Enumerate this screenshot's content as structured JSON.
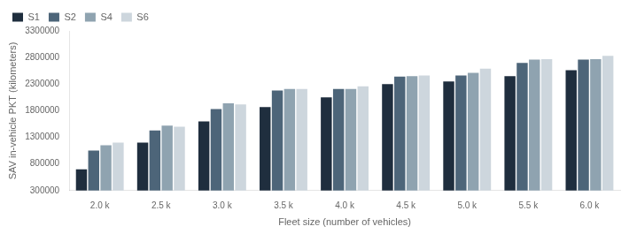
{
  "chart_data": {
    "type": "bar",
    "categories": [
      "2.0 k",
      "2.5 k",
      "3.0 k",
      "3.5 k",
      "4.0 k",
      "4.5 k",
      "5.0 k",
      "5.5 k",
      "6.0 k"
    ],
    "series": [
      {
        "name": "S1",
        "color": "#1f2e3e",
        "values": [
          700000,
          1200000,
          1600000,
          1870000,
          2050000,
          2300000,
          2350000,
          2450000,
          2560000
        ]
      },
      {
        "name": "S2",
        "color": "#4d6579",
        "values": [
          1050000,
          1430000,
          1830000,
          2180000,
          2210000,
          2440000,
          2460000,
          2700000,
          2760000
        ]
      },
      {
        "name": "S4",
        "color": "#8fa3b0",
        "values": [
          1150000,
          1520000,
          1940000,
          2210000,
          2210000,
          2450000,
          2510000,
          2760000,
          2770000
        ]
      },
      {
        "name": "S6",
        "color": "#cdd6dd",
        "values": [
          1200000,
          1500000,
          1920000,
          2210000,
          2260000,
          2460000,
          2590000,
          2770000,
          2830000
        ]
      }
    ],
    "ylabel": "SAV in-vehicle PKT (kilometers)",
    "xlabel": "Fleet size (number of vehicles)",
    "ylim": [
      300000,
      3300000
    ],
    "yticks": [
      300000,
      800000,
      1300000,
      1800000,
      2300000,
      2800000,
      3300000
    ],
    "grid": false,
    "legend": "upper left"
  }
}
